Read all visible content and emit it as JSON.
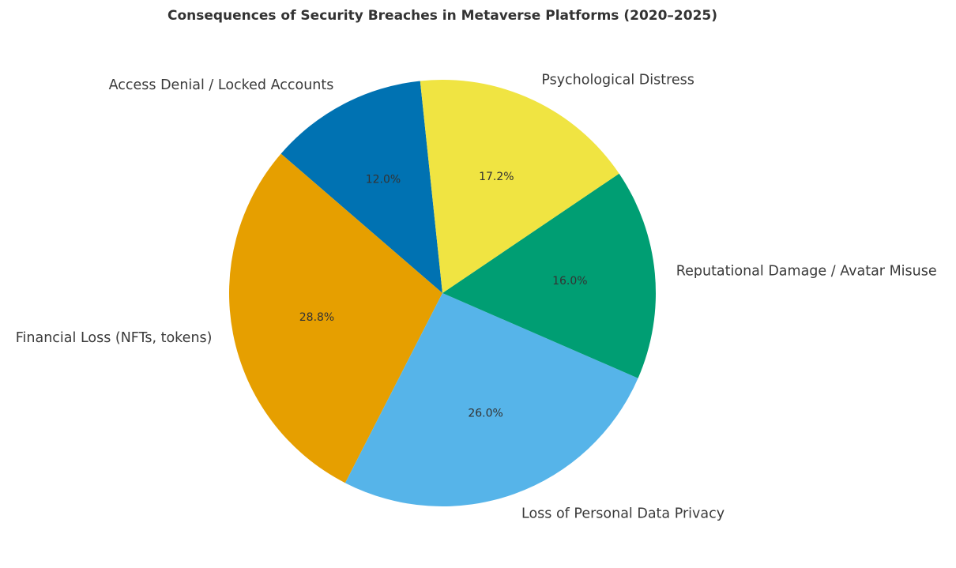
{
  "chart_data": {
    "type": "pie",
    "title": "Consequences of Security Breaches in Metaverse Platforms (2020–2025)",
    "start_angle_deg": 96,
    "direction": "counterclockwise",
    "slices": [
      {
        "label": "Access Denial / Locked Accounts",
        "value": 12.0,
        "pct_label": "12.0%",
        "color": "#0072B2"
      },
      {
        "label": "Financial Loss (NFTs, tokens)",
        "value": 28.8,
        "pct_label": "28.8%",
        "color": "#E69F00"
      },
      {
        "label": "Loss of Personal Data Privacy",
        "value": 26.0,
        "pct_label": "26.0%",
        "color": "#56B4E9"
      },
      {
        "label": "Reputational Damage / Avatar Misuse",
        "value": 16.0,
        "pct_label": "16.0%",
        "color": "#009E73"
      },
      {
        "label": "Psychological Distress",
        "value": 17.2,
        "pct_label": "17.2%",
        "color": "#F0E442"
      }
    ]
  }
}
